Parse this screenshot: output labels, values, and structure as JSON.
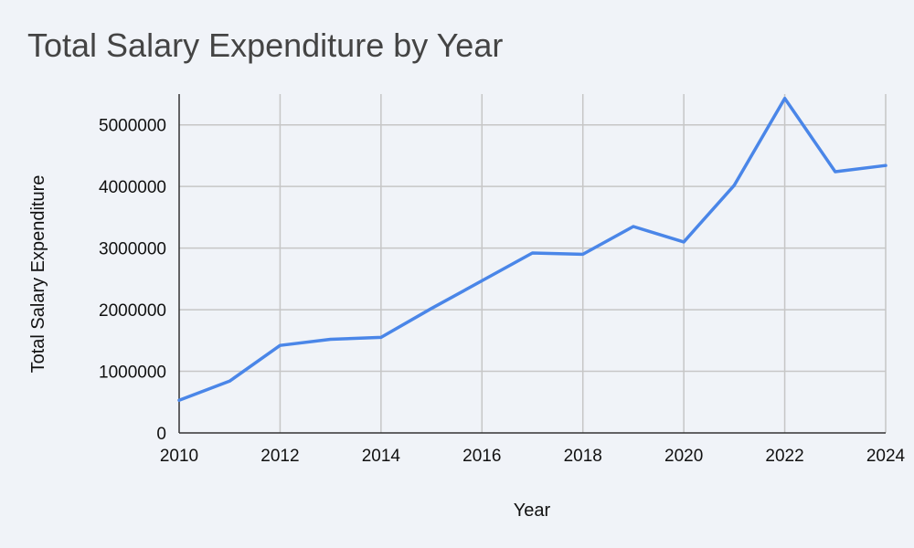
{
  "chart_data": {
    "type": "line",
    "title": "Total Salary Expenditure by Year",
    "xlabel": "Year",
    "ylabel": "Total Salary Expenditure",
    "xlim": [
      2010,
      2024
    ],
    "ylim": [
      0,
      5500000
    ],
    "x_ticks": [
      2010,
      2012,
      2014,
      2016,
      2018,
      2020,
      2022,
      2024
    ],
    "y_ticks": [
      0,
      1000000,
      2000000,
      3000000,
      4000000,
      5000000
    ],
    "grid": true,
    "legend": "none",
    "colors": {
      "line": "#4a86e8"
    },
    "series": [
      {
        "x": [
          2010,
          2011,
          2012,
          2013,
          2014,
          2015,
          2016,
          2017,
          2018,
          2019,
          2020,
          2021,
          2022,
          2023,
          2024
        ],
        "values": [
          530000,
          840000,
          1420000,
          1520000,
          1550000,
          2020000,
          2470000,
          2920000,
          2900000,
          3350000,
          3100000,
          4020000,
          5430000,
          4240000,
          4340000
        ]
      }
    ]
  }
}
